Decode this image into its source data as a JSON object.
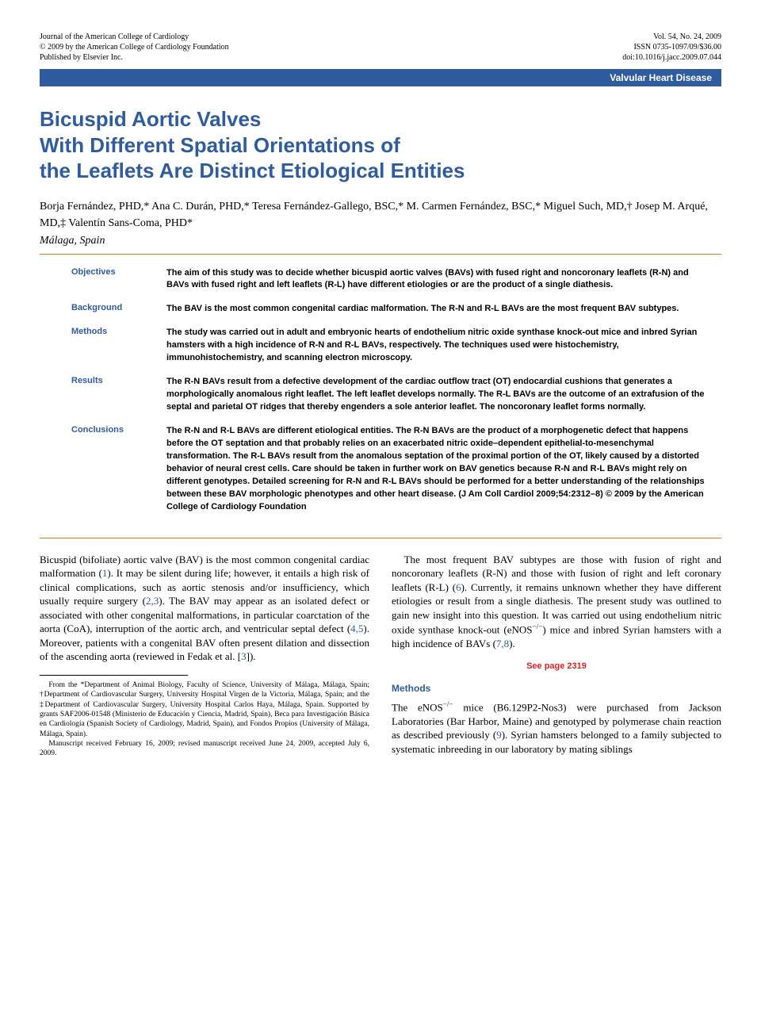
{
  "header": {
    "left_line1": "Journal of the American College of Cardiology",
    "left_line2": "© 2009 by the American College of Cardiology Foundation",
    "left_line3": "Published by Elsevier Inc.",
    "right_line1": "Vol. 54, No. 24, 2009",
    "right_line2": "ISSN 0735-1097/09/$36.00",
    "right_line3": "doi:10.1016/j.jacc.2009.07.044"
  },
  "category_bar": "Valvular Heart Disease",
  "title_line1": "Bicuspid Aortic Valves",
  "title_line2": "With Different Spatial Orientations of",
  "title_line3": "the Leaflets Are Distinct Etiological Entities",
  "authors": "Borja Fernández, PHD,* Ana C. Durán, PHD,* Teresa Fernández-Gallego, BSC,* M. Carmen Fernández, BSC,* Miguel Such, MD,† Josep M. Arqué, MD,‡ Valentín Sans-Coma, PHD*",
  "location": "Málaga, Spain",
  "abstract": {
    "objectives": {
      "label": "Objectives",
      "text": "The aim of this study was to decide whether bicuspid aortic valves (BAVs) with fused right and noncoronary leaflets (R-N) and BAVs with fused right and left leaflets (R-L) have different etiologies or are the product of a single diathesis."
    },
    "background": {
      "label": "Background",
      "text": "The BAV is the most common congenital cardiac malformation. The R-N and R-L BAVs are the most frequent BAV subtypes."
    },
    "methods": {
      "label": "Methods",
      "text": "The study was carried out in adult and embryonic hearts of endothelium nitric oxide synthase knock-out mice and inbred Syrian hamsters with a high incidence of R-N and R-L BAVs, respectively. The techniques used were histochemistry, immunohistochemistry, and scanning electron microscopy."
    },
    "results": {
      "label": "Results",
      "text": "The R-N BAVs result from a defective development of the cardiac outflow tract (OT) endocardial cushions that generates a morphologically anomalous right leaflet. The left leaflet develops normally. The R-L BAVs are the outcome of an extrafusion of the septal and parietal OT ridges that thereby engenders a sole anterior leaflet. The noncoronary leaflet forms normally."
    },
    "conclusions": {
      "label": "Conclusions",
      "text": "The R-N and R-L BAVs are different etiological entities. The R-N BAVs are the product of a morphogenetic defect that happens before the OT septation and that probably relies on an exacerbated nitric oxide–dependent epithelial-to-mesenchymal transformation. The R-L BAVs result from the anomalous septation of the proximal portion of the OT, likely caused by a distorted behavior of neural crest cells. Care should be taken in further work on BAV genetics because R-N and R-L BAVs might rely on different genotypes. Detailed screening for R-N and R-L BAVs should be performed for a better understanding of the relationships between these BAV morphologic phenotypes and other heart disease.   (J Am Coll Cardiol 2009;54:2312–8) © 2009 by the American College of Cardiology Foundation"
    }
  },
  "body": {
    "col1_p1_a": "Bicuspid (bifoliate) aortic valve (BAV) is the most common congenital cardiac malformation (",
    "col1_p1_ref1": "1",
    "col1_p1_b": "). It may be silent during life; however, it entails a high risk of clinical complications, such as aortic stenosis and/or insufficiency, which usually require surgery (",
    "col1_p1_ref2": "2,3",
    "col1_p1_c": "). The BAV may appear as an isolated defect or associated with other congenital malformations, in particular coarctation of the aorta (CoA), interruption of the aortic arch, and ventricular septal defect (",
    "col1_p1_ref3": "4,5",
    "col1_p1_d": "). Moreover, patients with a congenital BAV often present dilation and dissection of the ascending aorta (reviewed in Fedak et al. [",
    "col1_p1_ref4": "3",
    "col1_p1_e": "]).",
    "col2_p1_a": "The most frequent BAV subtypes are those with fusion of right and noncoronary leaflets (R-N) and those with fusion of right and left coronary leaflets (R-L) (",
    "col2_p1_ref1": "6",
    "col2_p1_b": "). Currently, it remains unknown whether they have different etiologies or result from a single diathesis. The present study was outlined to gain new insight into this question. It was carried out using endothelium nitric oxide synthase knock-out (eNOS",
    "col2_p1_sup": "−/−",
    "col2_p1_c": ") mice and inbred Syrian hamsters with a high incidence of BAVs (",
    "col2_p1_ref2": "7,8",
    "col2_p1_d": ").",
    "see_page": "See page 2319",
    "methods_heading": "Methods",
    "col2_p2_a": "The eNOS",
    "col2_p2_sup": "−/−",
    "col2_p2_b": " mice (B6.129P2-Nos3) were purchased from Jackson Laboratories (Bar Harbor, Maine) and genotyped by polymerase chain reaction as described previously (",
    "col2_p2_ref1": "9",
    "col2_p2_c": "). Syrian hamsters belonged to a family subjected to systematic inbreeding in our laboratory by mating siblings"
  },
  "footnote": {
    "p1": "From the *Department of Animal Biology, Faculty of Science, University of Málaga, Málaga, Spain; †Department of Cardiovascular Surgery, University Hospital Virgen de la Victoria, Málaga, Spain; and the ‡Department of Cardiovascular Surgery, University Hospital Carlos Haya, Málaga, Spain. Supported by grants SAF2006-01548 (Ministerio de Educación y Ciencia, Madrid, Spain), Beca para Investigación Básica en Cardiología (Spanish Society of Cardiology, Madrid, Spain), and Fondos Propios (University of Málaga, Málaga, Spain).",
    "p2": "Manuscript received February 16, 2009; revised manuscript received June 24, 2009, accepted July 6, 2009."
  },
  "colors": {
    "blue": "#2e5c9e",
    "orange": "#d97a1f",
    "red": "#d22"
  }
}
